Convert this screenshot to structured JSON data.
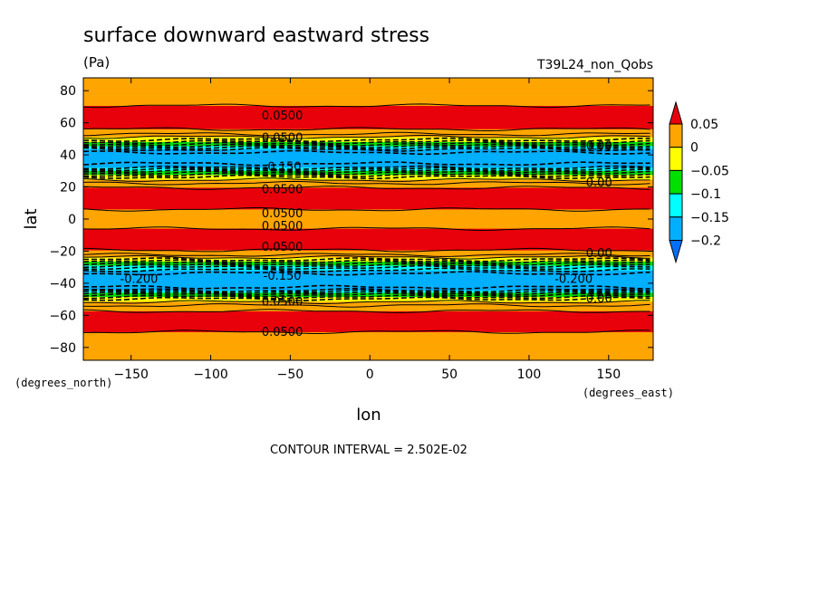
{
  "chart_data": {
    "type": "heatmap",
    "title": "surface downward eastward stress",
    "units": "(Pa)",
    "experiment": "T39L24_non_Qobs",
    "xlabel": "lon",
    "ylabel": "lat",
    "x_units": "(degrees_east)",
    "y_units": "(degrees_north)",
    "xlim": [
      -180,
      178
    ],
    "ylim": [
      -88,
      88
    ],
    "x_ticks": [
      -150,
      -100,
      -50,
      0,
      50,
      100,
      150
    ],
    "y_ticks": [
      -80,
      -60,
      -40,
      -20,
      0,
      20,
      40,
      60,
      80
    ],
    "contour_interval_text": "CONTOUR INTERVAL = 2.502E-02",
    "colorbar": {
      "labels": [
        "0.05",
        "0",
        "−0.05",
        "−0.1",
        "−0.15",
        "−0.2"
      ],
      "colors": [
        "#e8000b",
        "#ffa500",
        "#ffff00",
        "#00e000",
        "#00ffff",
        "#00b0ff",
        "#0070ff"
      ],
      "level_bounds": [
        0.05,
        0.0,
        -0.05,
        -0.1,
        -0.15,
        -0.2
      ]
    },
    "zonal_profile": [
      {
        "lat": 88,
        "value": 0.03
      },
      {
        "lat": 76,
        "value": 0.03
      },
      {
        "lat": 68,
        "value": 0.06
      },
      {
        "lat": 60,
        "value": 0.07
      },
      {
        "lat": 54,
        "value": 0.04
      },
      {
        "lat": 49,
        "value": -0.03
      },
      {
        "lat": 46,
        "value": -0.09
      },
      {
        "lat": 43,
        "value": -0.16
      },
      {
        "lat": 40,
        "value": -0.19
      },
      {
        "lat": 36,
        "value": -0.19
      },
      {
        "lat": 32,
        "value": -0.15
      },
      {
        "lat": 29,
        "value": -0.08
      },
      {
        "lat": 26,
        "value": -0.02
      },
      {
        "lat": 22,
        "value": 0.03
      },
      {
        "lat": 17,
        "value": 0.07
      },
      {
        "lat": 10,
        "value": 0.07
      },
      {
        "lat": 6,
        "value": 0.05
      },
      {
        "lat": 0,
        "value": 0.03
      },
      {
        "lat": -6,
        "value": 0.05
      },
      {
        "lat": -12,
        "value": 0.07
      },
      {
        "lat": -18,
        "value": 0.06
      },
      {
        "lat": -22,
        "value": 0.03
      },
      {
        "lat": -25,
        "value": -0.02
      },
      {
        "lat": -28,
        "value": -0.08
      },
      {
        "lat": -31,
        "value": -0.14
      },
      {
        "lat": -35,
        "value": -0.19
      },
      {
        "lat": -40,
        "value": -0.2
      },
      {
        "lat": -44,
        "value": -0.16
      },
      {
        "lat": -47,
        "value": -0.08
      },
      {
        "lat": -50,
        "value": -0.02
      },
      {
        "lat": -55,
        "value": 0.04
      },
      {
        "lat": -62,
        "value": 0.07
      },
      {
        "lat": -68,
        "value": 0.06
      },
      {
        "lat": -75,
        "value": 0.03
      },
      {
        "lat": -88,
        "value": 0.03
      }
    ],
    "contour_labels": [
      {
        "text": "0.0500",
        "lon": -55,
        "lat": 65
      },
      {
        "text": "0.0500",
        "lon": -55,
        "lat": 51
      },
      {
        "text": "-0.150",
        "lon": -55,
        "lat": 33
      },
      {
        "text": "0.0500",
        "lon": -55,
        "lat": 19
      },
      {
        "text": "0.0500",
        "lon": -55,
        "lat": 4
      },
      {
        "text": "0.0500",
        "lon": -55,
        "lat": -4
      },
      {
        "text": "0.0500",
        "lon": -55,
        "lat": -17
      },
      {
        "text": "-0.150",
        "lon": -55,
        "lat": -35
      },
      {
        "text": "-0.200",
        "lon": -145,
        "lat": -37
      },
      {
        "text": "0.0500",
        "lon": -55,
        "lat": -51
      },
      {
        "text": "0.0500",
        "lon": -55,
        "lat": -70
      },
      {
        "text": "0.00",
        "lon": 144,
        "lat": 46
      },
      {
        "text": "0.00",
        "lon": 144,
        "lat": 23
      },
      {
        "text": "0.00",
        "lon": 144,
        "lat": -21
      },
      {
        "text": "-0.200",
        "lon": 128,
        "lat": -37
      },
      {
        "text": "0.00",
        "lon": 144,
        "lat": -49
      }
    ]
  }
}
